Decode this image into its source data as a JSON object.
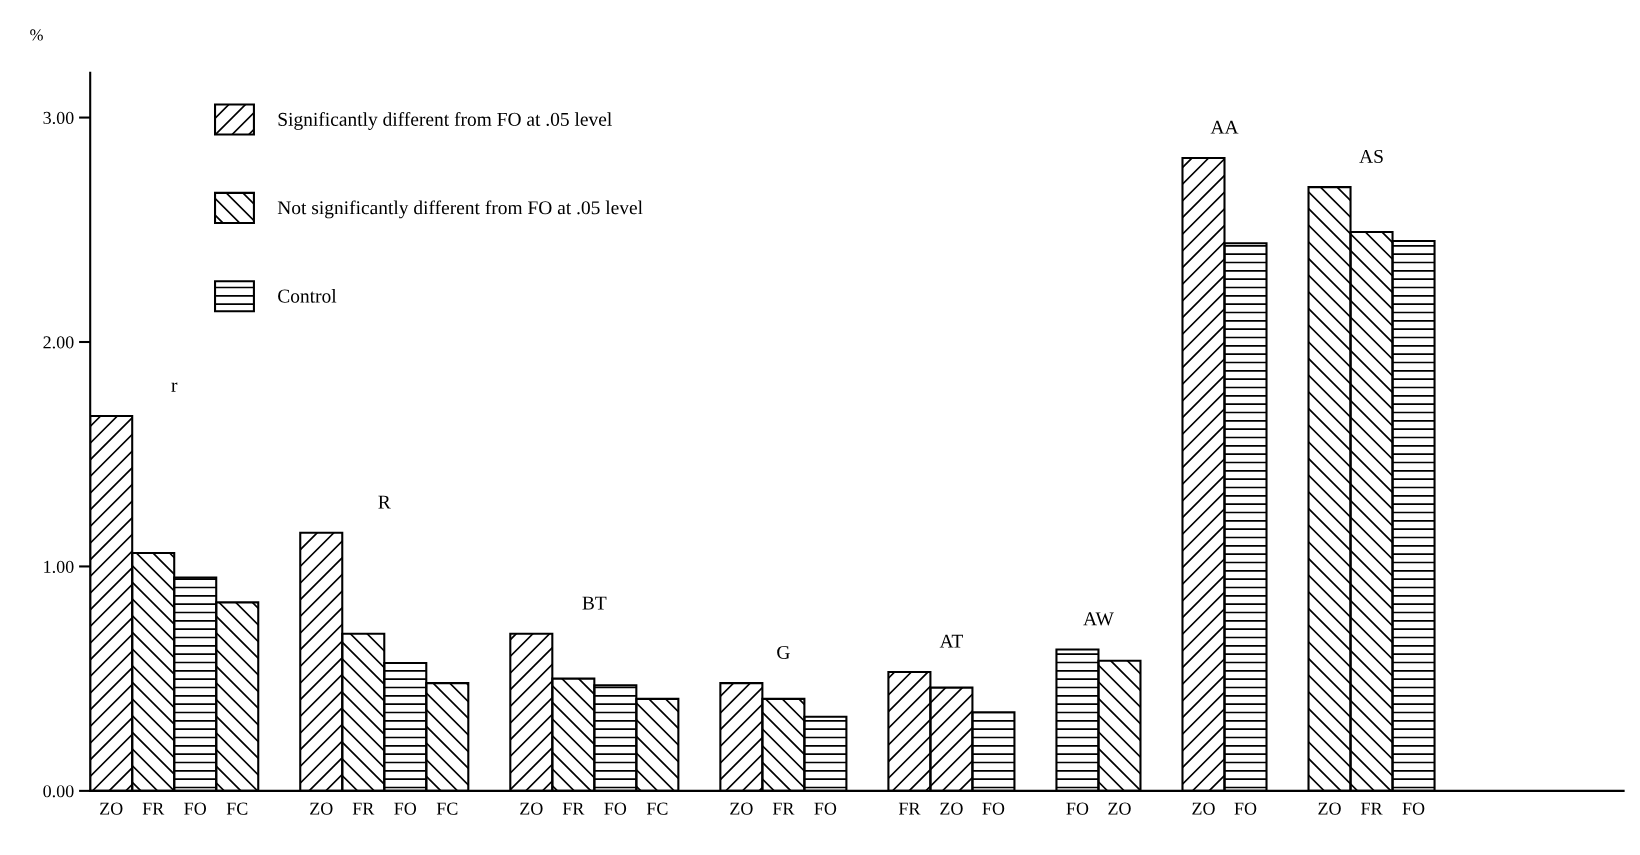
{
  "chart_data": {
    "type": "bar",
    "ylabel": "%",
    "categories": [
      "ZO",
      "FR",
      "FO",
      "FC",
      null,
      "ZO",
      "FR",
      "FO",
      "FC",
      null,
      "ZO",
      "FR",
      "FO",
      "FC",
      null,
      "ZO",
      "FR",
      "FO",
      null,
      "FR",
      "ZO",
      "FO",
      null,
      "FO",
      "ZO",
      null,
      "ZO",
      "FO",
      null,
      "ZO",
      "FR",
      "FO"
    ],
    "series": [
      {
        "name": "Significantly different from FO at .05 level",
        "color": "#000000",
        "values": [
          1.67,
          null,
          null,
          null,
          null,
          1.15,
          null,
          null,
          null,
          null,
          0.7,
          null,
          null,
          null,
          null,
          0.48,
          null,
          null,
          null,
          0.53,
          0.46,
          null,
          null,
          null,
          null,
          null,
          2.82,
          null,
          null,
          null,
          null,
          null
        ]
      },
      {
        "name": "Not significantly different from FO at .05 level",
        "color": "#000000",
        "values": [
          null,
          1.06,
          null,
          0.84,
          null,
          null,
          0.7,
          null,
          0.48,
          null,
          null,
          0.5,
          null,
          0.41,
          null,
          null,
          0.41,
          null,
          null,
          null,
          null,
          null,
          null,
          null,
          0.58,
          null,
          null,
          null,
          null,
          2.69,
          2.49,
          null
        ]
      },
      {
        "name": "Control",
        "color": "#000000",
        "values": [
          null,
          null,
          0.95,
          null,
          null,
          null,
          null,
          0.57,
          null,
          null,
          null,
          null,
          0.47,
          null,
          null,
          null,
          null,
          0.33,
          null,
          null,
          null,
          0.35,
          null,
          0.63,
          null,
          null,
          null,
          2.44,
          null,
          null,
          null,
          2.45
        ]
      }
    ],
    "annotations": [
      "r",
      "R",
      "BT",
      "G",
      "AT",
      "AW",
      "AA",
      "AS"
    ],
    "ylim": [
      0,
      3.2
    ],
    "yticks": [
      {
        "value": 0,
        "label": "0.00"
      },
      {
        "value": 1,
        "label": "1.00"
      },
      {
        "value": 2,
        "label": "2.00"
      },
      {
        "value": 3,
        "label": "3.00"
      }
    ],
    "legend": "top left",
    "grid": false
  }
}
